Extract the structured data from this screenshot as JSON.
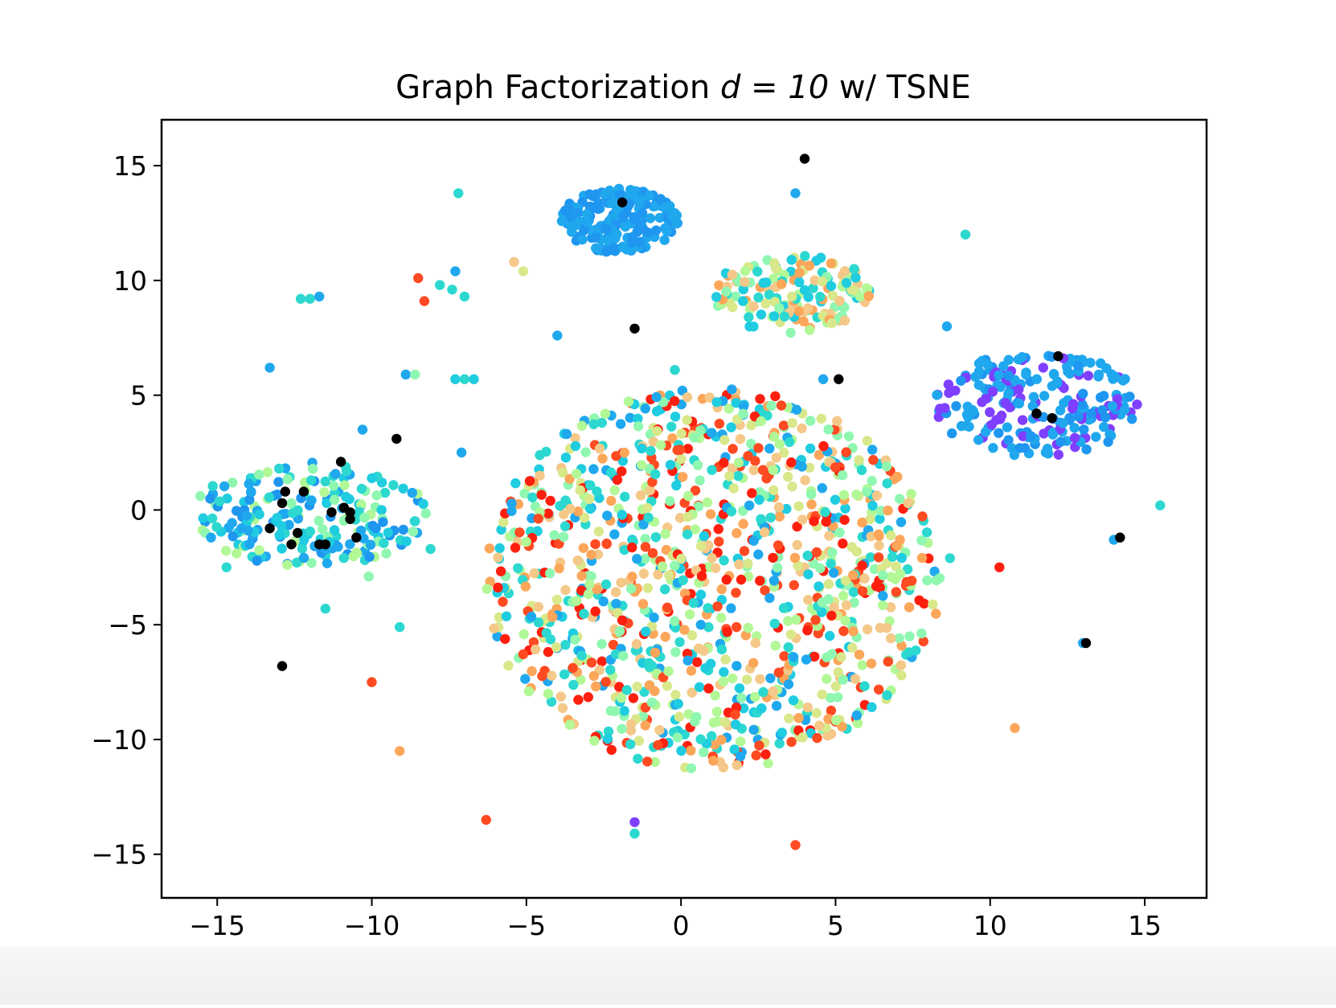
{
  "chart_data": {
    "type": "scatter",
    "title": "Graph Factorization",
    "title_math": "d = 10",
    "title_suffix": "w/ TSNE",
    "xlabel": "",
    "ylabel": "",
    "xlim": [
      -16.8,
      17.0
    ],
    "ylim": [
      -16.9,
      17.0
    ],
    "xticks": [
      -15,
      -10,
      -5,
      0,
      5,
      10,
      15
    ],
    "yticks": [
      -15,
      -10,
      -5,
      0,
      5,
      10,
      15
    ],
    "xtick_labels": [
      "−15",
      "−10",
      "−5",
      "0",
      "5",
      "10",
      "15"
    ],
    "ytick_labels": [
      "−15",
      "−10",
      "−5",
      "0",
      "5",
      "10",
      "15"
    ],
    "grid": false,
    "legend": "none",
    "colormap": "rainbow",
    "colors": {
      "black": "#000000",
      "violet": "#7f3fff",
      "blue": "#1f96f0",
      "azure": "#20a8ee",
      "cyan": "#1fcce0",
      "turquoise": "#2cd8d0",
      "aquamarine": "#8ff7b0",
      "lightgreen": "#b2f896",
      "yellowgreen": "#d8e88a",
      "sand": "#f4c888",
      "orange": "#fca65a",
      "redorange": "#ff4a22",
      "red": "#ff1f0f"
    },
    "clusters": [
      {
        "center": [
          1.0,
          -3.0
        ],
        "spread": [
          7.4,
          8.3
        ],
        "shape": "disc",
        "count": 1150,
        "palette": [
          "cyan",
          "turquoise",
          "redorange",
          "red",
          "aquamarine",
          "lightgreen",
          "yellowgreen",
          "sand",
          "orange",
          "azure"
        ]
      },
      {
        "center": [
          -2.0,
          12.6
        ],
        "spread": [
          1.9,
          1.4
        ],
        "shape": "disc",
        "count": 190,
        "palette": [
          "blue",
          "azure"
        ]
      },
      {
        "center": [
          3.6,
          9.4
        ],
        "spread": [
          2.6,
          1.7
        ],
        "shape": "disc",
        "count": 150,
        "palette": [
          "turquoise",
          "aquamarine",
          "cyan",
          "sand",
          "yellowgreen",
          "lightgreen",
          "orange"
        ]
      },
      {
        "center": [
          11.5,
          4.6
        ],
        "spread": [
          3.3,
          2.3
        ],
        "shape": "disc",
        "count": 230,
        "palette": [
          "blue",
          "azure",
          "violet",
          "azure"
        ]
      },
      {
        "center": [
          -12.0,
          -0.2
        ],
        "spread": [
          3.8,
          2.3
        ],
        "shape": "disc",
        "count": 210,
        "palette": [
          "cyan",
          "turquoise",
          "aquamarine",
          "azure",
          "blue",
          "lightgreen"
        ]
      }
    ],
    "outliers": [
      {
        "x": -7.2,
        "y": 13.8,
        "c": "turquoise"
      },
      {
        "x": 3.7,
        "y": 13.8,
        "c": "azure"
      },
      {
        "x": 9.2,
        "y": 12.0,
        "c": "turquoise"
      },
      {
        "x": 5.6,
        "y": 10.5,
        "c": "turquoise"
      },
      {
        "x": -7.3,
        "y": 10.4,
        "c": "azure"
      },
      {
        "x": -5.4,
        "y": 10.8,
        "c": "sand"
      },
      {
        "x": -5.1,
        "y": 10.4,
        "c": "yellowgreen"
      },
      {
        "x": -8.5,
        "y": 10.1,
        "c": "redorange"
      },
      {
        "x": -8.3,
        "y": 9.1,
        "c": "redorange"
      },
      {
        "x": -7.8,
        "y": 9.8,
        "c": "turquoise"
      },
      {
        "x": -7.4,
        "y": 9.6,
        "c": "turquoise"
      },
      {
        "x": -7.0,
        "y": 9.3,
        "c": "turquoise"
      },
      {
        "x": -12.3,
        "y": 9.2,
        "c": "turquoise"
      },
      {
        "x": -12.0,
        "y": 9.2,
        "c": "turquoise"
      },
      {
        "x": -11.7,
        "y": 9.3,
        "c": "azure"
      },
      {
        "x": 8.6,
        "y": 8.0,
        "c": "azure"
      },
      {
        "x": -4.0,
        "y": 7.6,
        "c": "azure"
      },
      {
        "x": -13.3,
        "y": 6.2,
        "c": "azure"
      },
      {
        "x": -8.9,
        "y": 5.9,
        "c": "azure"
      },
      {
        "x": -8.6,
        "y": 5.9,
        "c": "aquamarine"
      },
      {
        "x": -7.3,
        "y": 5.7,
        "c": "cyan"
      },
      {
        "x": -7.0,
        "y": 5.7,
        "c": "turquoise"
      },
      {
        "x": -6.7,
        "y": 5.7,
        "c": "cyan"
      },
      {
        "x": -10.3,
        "y": 3.5,
        "c": "azure"
      },
      {
        "x": -7.1,
        "y": 2.5,
        "c": "azure"
      },
      {
        "x": -8.1,
        "y": -1.7,
        "c": "turquoise"
      },
      {
        "x": -14.7,
        "y": -2.5,
        "c": "turquoise"
      },
      {
        "x": -10.1,
        "y": -2.9,
        "c": "aquamarine"
      },
      {
        "x": -15.2,
        "y": -1.2,
        "c": "azure"
      },
      {
        "x": -11.5,
        "y": -4.3,
        "c": "turquoise"
      },
      {
        "x": -9.1,
        "y": -5.1,
        "c": "turquoise"
      },
      {
        "x": -10.0,
        "y": -7.5,
        "c": "redorange"
      },
      {
        "x": -9.1,
        "y": -10.5,
        "c": "orange"
      },
      {
        "x": -6.3,
        "y": -13.5,
        "c": "redorange"
      },
      {
        "x": -1.5,
        "y": -13.6,
        "c": "violet"
      },
      {
        "x": -1.5,
        "y": -14.1,
        "c": "turquoise"
      },
      {
        "x": 3.7,
        "y": -14.6,
        "c": "redorange"
      },
      {
        "x": 10.8,
        "y": -9.5,
        "c": "orange"
      },
      {
        "x": 10.3,
        "y": -2.5,
        "c": "red"
      },
      {
        "x": 15.5,
        "y": 0.2,
        "c": "turquoise"
      },
      {
        "x": 14.0,
        "y": -1.3,
        "c": "azure"
      },
      {
        "x": 13.0,
        "y": -5.8,
        "c": "azure"
      },
      {
        "x": 4.6,
        "y": 5.7,
        "c": "azure"
      },
      {
        "x": -0.2,
        "y": 6.1,
        "c": "turquoise"
      },
      {
        "x": 8.7,
        "y": -2.1,
        "c": "turquoise"
      },
      {
        "x": -13.0,
        "y": 1.8,
        "c": "turquoise"
      }
    ],
    "black_points": [
      [
        4.0,
        15.3
      ],
      [
        -1.9,
        13.4
      ],
      [
        -1.5,
        7.9
      ],
      [
        5.1,
        5.7
      ],
      [
        12.2,
        6.7
      ],
      [
        11.5,
        4.2
      ],
      [
        12.0,
        4.0
      ],
      [
        -9.2,
        3.1
      ],
      [
        -11.0,
        2.1
      ],
      [
        -12.8,
        0.8
      ],
      [
        -12.2,
        0.8
      ],
      [
        -12.9,
        0.3
      ],
      [
        -10.9,
        0.1
      ],
      [
        -11.3,
        -0.1
      ],
      [
        -10.7,
        -0.1
      ],
      [
        -10.7,
        -0.4
      ],
      [
        -13.3,
        -0.8
      ],
      [
        -12.4,
        -1.0
      ],
      [
        -10.5,
        -1.2
      ],
      [
        -12.6,
        -1.5
      ],
      [
        -11.7,
        -1.5
      ],
      [
        -11.5,
        -1.5
      ],
      [
        14.2,
        -1.2
      ],
      [
        13.1,
        -5.8
      ],
      [
        -12.9,
        -6.8
      ]
    ]
  }
}
